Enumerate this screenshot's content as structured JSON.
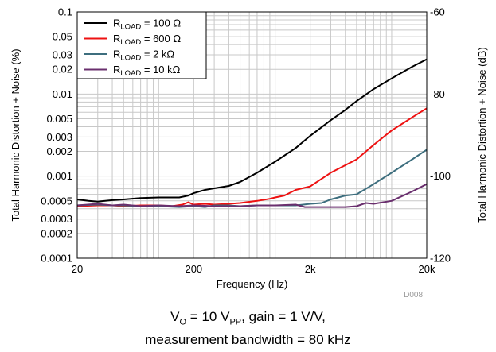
{
  "chart_data": {
    "type": "line",
    "title": "",
    "xlabel": "Frequency (Hz)",
    "ylabel": "Total Harmonic Distortion + Noise (%)",
    "y2label": "Total Harmonic Distortion + Noise (dB)",
    "xscale": "log",
    "yscale": "log",
    "xlim": [
      20,
      20000
    ],
    "ylim": [
      0.0001,
      0.1
    ],
    "y2lim": [
      -120,
      -60
    ],
    "x_ticks": [
      {
        "value": 20,
        "label": "20"
      },
      {
        "value": 200,
        "label": "200"
      },
      {
        "value": 2000,
        "label": "2k"
      },
      {
        "value": 20000,
        "label": "20k"
      }
    ],
    "y_ticks": [
      {
        "value": 0.1,
        "label": "0.1"
      },
      {
        "value": 0.05,
        "label": "0.05"
      },
      {
        "value": 0.03,
        "label": "0.03"
      },
      {
        "value": 0.02,
        "label": "0.02"
      },
      {
        "value": 0.01,
        "label": "0.01"
      },
      {
        "value": 0.005,
        "label": "0.005"
      },
      {
        "value": 0.003,
        "label": "0.003"
      },
      {
        "value": 0.002,
        "label": "0.002"
      },
      {
        "value": 0.001,
        "label": "0.001"
      },
      {
        "value": 0.0005,
        "label": "0.0005"
      },
      {
        "value": 0.0003,
        "label": "0.0003"
      },
      {
        "value": 0.0002,
        "label": "0.0002"
      },
      {
        "value": 0.0001,
        "label": "0.0001"
      }
    ],
    "y2_ticks": [
      {
        "value": -60,
        "label": "-60"
      },
      {
        "value": -80,
        "label": "-80"
      },
      {
        "value": -100,
        "label": "-100"
      },
      {
        "value": -120,
        "label": "-120"
      }
    ],
    "grid": true,
    "legend_position": "top-left",
    "figure_id": "D008",
    "series": [
      {
        "name_main": "R",
        "name_sub": "LOAD",
        "name_rest": " = 100 Ω",
        "color": "#000000",
        "x": [
          20,
          25,
          30,
          40,
          50,
          70,
          100,
          150,
          180,
          200,
          250,
          300,
          400,
          500,
          700,
          1000,
          1500,
          2000,
          3000,
          4000,
          5000,
          7000,
          10000,
          15000,
          20000
        ],
        "y": [
          0.00052,
          0.0005,
          0.00049,
          0.00051,
          0.00052,
          0.00054,
          0.00055,
          0.00055,
          0.00058,
          0.00062,
          0.00068,
          0.00071,
          0.00076,
          0.00085,
          0.0011,
          0.0015,
          0.0022,
          0.0031,
          0.0048,
          0.0064,
          0.0082,
          0.0115,
          0.0155,
          0.0215,
          0.0265
        ]
      },
      {
        "name_main": "R",
        "name_sub": "LOAD",
        "name_rest": " = 600 Ω",
        "color": "#ee1111",
        "x": [
          20,
          30,
          40,
          50,
          70,
          100,
          130,
          160,
          180,
          200,
          250,
          300,
          400,
          500,
          700,
          900,
          1000,
          1200,
          1500,
          2000,
          3000,
          5000,
          7000,
          10000,
          15000,
          20000
        ],
        "y": [
          0.00043,
          0.00044,
          0.00044,
          0.00043,
          0.00044,
          0.00044,
          0.00043,
          0.00045,
          0.00048,
          0.00045,
          0.00046,
          0.00045,
          0.00046,
          0.00047,
          0.0005,
          0.00053,
          0.00055,
          0.00058,
          0.00068,
          0.00075,
          0.0011,
          0.0016,
          0.0024,
          0.0036,
          0.0052,
          0.0067
        ]
      },
      {
        "name_main": "R",
        "name_sub": "LOAD",
        "name_rest": " = 2 kΩ",
        "color": "#3d6e7e",
        "x": [
          20,
          30,
          40,
          50,
          70,
          100,
          150,
          200,
          250,
          300,
          400,
          500,
          700,
          1000,
          1500,
          2000,
          2500,
          3000,
          4000,
          5000,
          7000,
          10000,
          15000,
          20000
        ],
        "y": [
          0.00044,
          0.00045,
          0.00044,
          0.00044,
          0.00043,
          0.00043,
          0.00042,
          0.00043,
          0.00042,
          0.00044,
          0.00044,
          0.00043,
          0.00044,
          0.00044,
          0.00044,
          0.00046,
          0.00047,
          0.00052,
          0.00058,
          0.0006,
          0.0008,
          0.0011,
          0.0016,
          0.0021
        ]
      },
      {
        "name_main": "R",
        "name_sub": "LOAD",
        "name_rest": " = 10 kΩ",
        "color": "#6a2f6e",
        "x": [
          20,
          30,
          40,
          50,
          70,
          100,
          150,
          200,
          300,
          500,
          700,
          1000,
          1500,
          1800,
          2000,
          3000,
          4000,
          5000,
          6000,
          7000,
          10000,
          15000,
          20000
        ],
        "y": [
          0.00044,
          0.00046,
          0.00044,
          0.00045,
          0.00043,
          0.00044,
          0.00043,
          0.00044,
          0.00043,
          0.00043,
          0.00044,
          0.00044,
          0.00045,
          0.00042,
          0.00042,
          0.00042,
          0.00042,
          0.00043,
          0.00047,
          0.00046,
          0.0005,
          0.00065,
          0.0008
        ]
      }
    ]
  },
  "caption": {
    "line1_vo": "V",
    "line1_vo_sub": "O",
    "line1_mid": " = 10 V",
    "line1_pp_sub": "PP",
    "line1_end": ", gain = 1 V/V,",
    "line2": "measurement bandwidth = 80 kHz"
  }
}
